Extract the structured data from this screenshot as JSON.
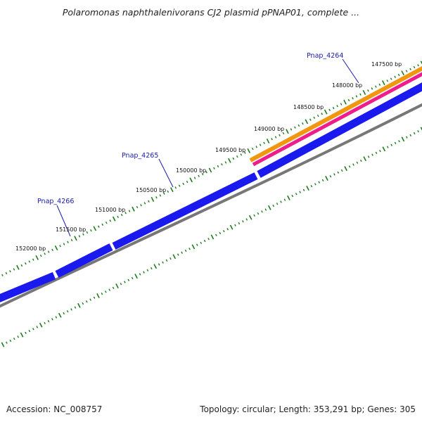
{
  "title": "Polaromonas naphthalenivorans CJ2 plasmid pPNAP01, complete ...",
  "footer": {
    "accession": "Accession: NC_008757",
    "summary": "Topology: circular; Length: 353,291 bp; Genes: 305"
  },
  "tick_labels": [
    "147500 bp",
    "148000 bp",
    "148500 bp",
    "149000 bp",
    "149500 bp",
    "150000 bp",
    "150500 bp",
    "151000 bp",
    "151500 bp",
    "152000 bp"
  ],
  "gene_labels": [
    "Pnap_4264",
    "Pnap_4265",
    "Pnap_4266"
  ],
  "colors": {
    "gene_blue": "#1a1aee",
    "backbone_gray": "#777777",
    "orange_track": "#f0960f",
    "magenta_track": "#ee1c8c",
    "tick_green": "#1e7a1e",
    "gene_label_color": "#1a1aaa"
  }
}
